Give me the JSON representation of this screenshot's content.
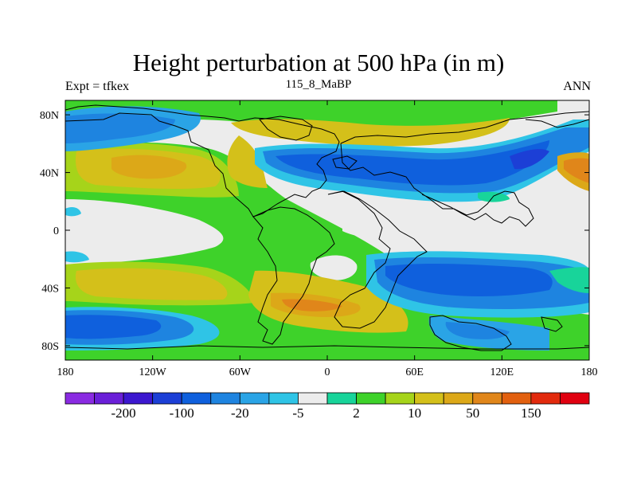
{
  "title": "Height perturbation at 500 hPa (in m)",
  "left_label": "Expt = tfkex",
  "center_label": "115_8_MaBP",
  "right_label": "ANN",
  "x_ticks": [
    {
      "lon": -180,
      "label": "180"
    },
    {
      "lon": -120,
      "label": "120W"
    },
    {
      "lon": -60,
      "label": "60W"
    },
    {
      "lon": 0,
      "label": "0"
    },
    {
      "lon": 60,
      "label": "60E"
    },
    {
      "lon": 120,
      "label": "120E"
    },
    {
      "lon": 180,
      "label": "180"
    }
  ],
  "y_ticks": [
    {
      "lat": 80,
      "label": "80N"
    },
    {
      "lat": 40,
      "label": "40N"
    },
    {
      "lat": 0,
      "label": "0"
    },
    {
      "lat": -40,
      "label": "40S"
    },
    {
      "lat": -80,
      "label": "80S"
    }
  ],
  "lon_range": [
    -180,
    180
  ],
  "lat_range": [
    -90,
    90
  ],
  "colorbar": {
    "colors": [
      "#8a2be2",
      "#6a1fd8",
      "#3c17cf",
      "#1c3fd6",
      "#0f60dd",
      "#1e84e0",
      "#2aa4e6",
      "#2fc4e6",
      "#ececec",
      "#18d49a",
      "#3ed22a",
      "#a6d41a",
      "#d4c01a",
      "#dca818",
      "#e0861a",
      "#e2600f",
      "#e22a0d",
      "#e00010"
    ],
    "labels": [
      {
        "after": 1,
        "text": "-200"
      },
      {
        "after": 3,
        "text": "-100"
      },
      {
        "after": 5,
        "text": "-20"
      },
      {
        "after": 7,
        "text": "-5"
      },
      {
        "after": 9,
        "text": "2"
      },
      {
        "after": 11,
        "text": "10"
      },
      {
        "after": 13,
        "text": "50"
      },
      {
        "after": 15,
        "text": "150"
      }
    ]
  }
}
